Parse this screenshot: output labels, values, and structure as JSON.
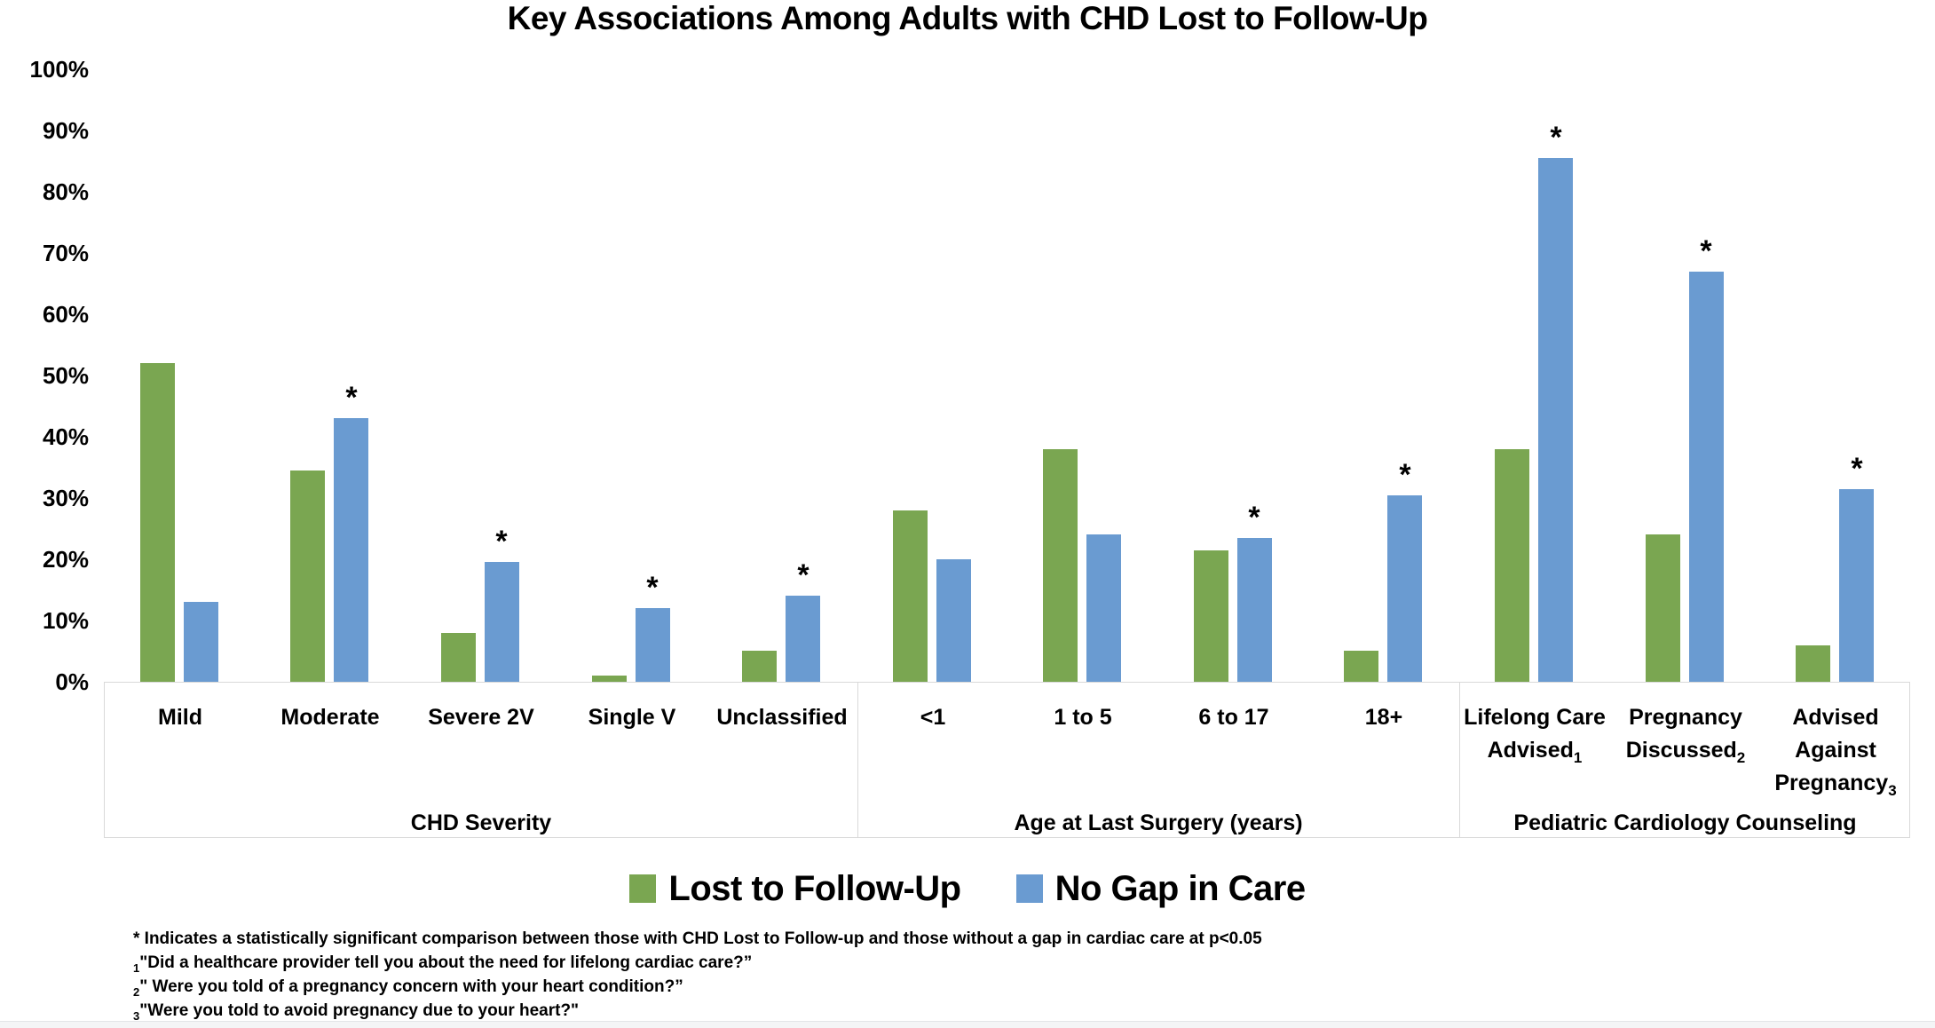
{
  "title": "Key Associations Among Adults with CHD Lost to Follow-Up",
  "chart_data": {
    "type": "bar",
    "title": "Key Associations Among Adults with CHD Lost to Follow-Up",
    "xlabel": "",
    "ylabel": "",
    "ylim": [
      0,
      100
    ],
    "grid": false,
    "legend_position": "bottom",
    "y_tick_values": [
      0,
      10,
      20,
      30,
      40,
      50,
      60,
      70,
      80,
      90,
      100
    ],
    "y_tick_labels": [
      "0%",
      "10%",
      "20%",
      "30%",
      "40%",
      "50%",
      "60%",
      "70%",
      "80%",
      "90%",
      "100%"
    ],
    "significance_marker": "*",
    "series": [
      {
        "name": "Lost to Follow-Up",
        "color": "#7AA651"
      },
      {
        "name": "No Gap in Care",
        "color": "#6A9BD1"
      }
    ],
    "groups": [
      {
        "label": "CHD Severity",
        "categories": [
          {
            "lines": [
              "Mild"
            ],
            "sub": "",
            "lost_to_follow_up": 52,
            "no_gap_in_care": 13,
            "significant": false
          },
          {
            "lines": [
              "Moderate"
            ],
            "sub": "",
            "lost_to_follow_up": 34.5,
            "no_gap_in_care": 43,
            "significant": true
          },
          {
            "lines": [
              "Severe 2V"
            ],
            "sub": "",
            "lost_to_follow_up": 8,
            "no_gap_in_care": 19.5,
            "significant": true
          },
          {
            "lines": [
              "Single V"
            ],
            "sub": "",
            "lost_to_follow_up": 1,
            "no_gap_in_care": 12,
            "significant": true
          },
          {
            "lines": [
              "Unclassified"
            ],
            "sub": "",
            "lost_to_follow_up": 5,
            "no_gap_in_care": 14,
            "significant": true
          }
        ]
      },
      {
        "label": "Age at Last Surgery (years)",
        "categories": [
          {
            "lines": [
              "<1"
            ],
            "sub": "",
            "lost_to_follow_up": 28,
            "no_gap_in_care": 20,
            "significant": false
          },
          {
            "lines": [
              "1 to 5"
            ],
            "sub": "",
            "lost_to_follow_up": 38,
            "no_gap_in_care": 24,
            "significant": false
          },
          {
            "lines": [
              "6 to 17"
            ],
            "sub": "",
            "lost_to_follow_up": 21.5,
            "no_gap_in_care": 23.5,
            "significant": true
          },
          {
            "lines": [
              "18+"
            ],
            "sub": "",
            "lost_to_follow_up": 5,
            "no_gap_in_care": 30.5,
            "significant": true
          }
        ]
      },
      {
        "label": "Pediatric Cardiology Counseling",
        "categories": [
          {
            "lines": [
              "Lifelong Care",
              "Advised"
            ],
            "sub": "1",
            "lost_to_follow_up": 38,
            "no_gap_in_care": 85.5,
            "significant": true
          },
          {
            "lines": [
              "Pregnancy",
              "Discussed"
            ],
            "sub": "2",
            "lost_to_follow_up": 24,
            "no_gap_in_care": 67,
            "significant": true
          },
          {
            "lines": [
              "Advised",
              "Against",
              "Pregnancy"
            ],
            "sub": "3",
            "lost_to_follow_up": 6,
            "no_gap_in_care": 31.5,
            "significant": true
          }
        ]
      }
    ]
  },
  "footnotes": [
    {
      "sub": "",
      "text": "* Indicates a statistically significant comparison between those with CHD Lost to Follow-up and those without a gap in cardiac care at p<0.05"
    },
    {
      "sub": "1",
      "text": "\"Did a healthcare provider tell you about the need for lifelong cardiac care?”"
    },
    {
      "sub": "2",
      "text": "\" Were you told of a pregnancy concern with your heart condition?”"
    },
    {
      "sub": "3",
      "text": "\"Were you told to avoid pregnancy due to your heart?\""
    }
  ]
}
